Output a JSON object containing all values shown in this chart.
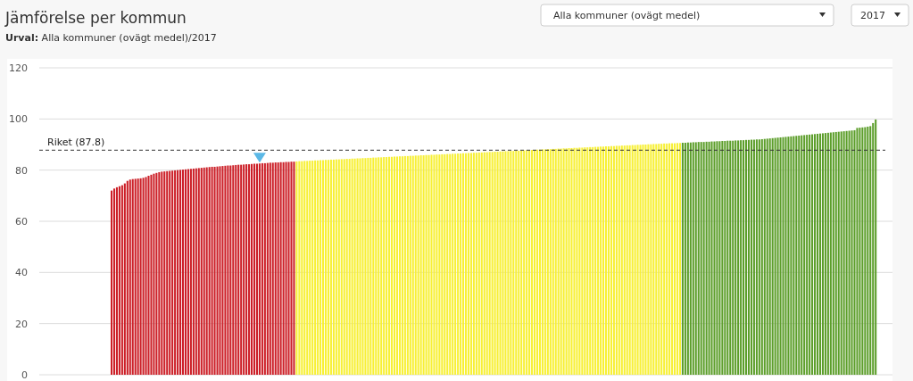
{
  "chart_data": {
    "type": "bar",
    "title": "Jämförelse per kommun",
    "subtitle": "Urval: Alla kommuner (ovägt medel)/2017",
    "annotations": [
      "Alla kommuner (ovägt medel)",
      "2017"
    ],
    "categories": [
      null,
      null,
      null,
      null,
      null,
      null,
      null,
      null,
      null,
      null,
      null,
      null,
      null,
      null,
      null,
      null,
      null,
      null,
      null,
      null,
      null,
      null,
      null,
      null,
      null,
      null,
      null,
      null,
      null,
      null,
      null,
      null,
      null,
      null,
      null,
      null,
      null,
      null,
      null,
      null,
      null,
      null,
      null,
      null,
      null,
      null,
      null,
      null,
      null,
      null,
      null,
      null,
      null,
      null,
      null,
      null,
      null,
      null,
      null,
      null,
      null,
      null,
      null,
      null,
      null,
      null,
      null,
      null,
      null,
      null,
      null,
      null,
      null,
      null,
      null,
      null,
      null,
      null,
      null,
      null,
      null,
      null,
      null,
      null,
      null,
      null,
      null,
      null,
      null,
      null,
      null,
      null,
      null,
      null,
      null,
      null,
      null,
      null,
      null,
      null,
      null,
      null,
      null,
      null,
      null,
      null,
      null,
      null,
      null,
      null,
      null,
      null,
      null,
      null,
      null,
      null,
      null,
      null,
      null,
      null,
      null,
      null,
      null,
      null,
      null,
      null,
      null,
      null,
      null,
      null,
      null,
      null,
      null,
      null,
      null,
      null,
      null,
      null,
      null,
      null,
      null,
      null,
      null,
      null,
      null,
      null,
      null,
      null,
      null,
      null,
      null,
      null,
      null,
      null,
      null,
      null,
      null,
      null,
      null,
      null,
      null,
      null,
      null,
      null,
      null,
      null,
      null,
      null,
      null,
      null,
      null,
      null,
      null,
      null,
      null,
      null,
      null,
      null,
      null,
      null,
      null,
      null,
      null,
      null,
      null,
      null,
      null,
      null,
      null,
      null,
      null,
      null,
      null,
      null,
      null,
      null,
      null,
      null,
      null,
      null,
      null,
      null,
      null,
      null,
      null,
      null,
      null,
      null,
      null,
      null,
      null,
      null,
      null,
      null,
      null,
      null,
      null,
      null,
      null,
      null,
      null,
      null,
      null,
      null,
      null,
      null,
      null,
      null,
      null,
      null,
      null,
      null,
      null,
      null,
      null,
      null,
      null,
      null,
      null,
      null,
      null,
      null,
      null,
      null,
      null,
      null,
      null,
      null,
      null,
      null,
      null,
      null,
      null,
      null,
      null,
      null,
      null,
      null,
      null,
      null,
      null,
      null,
      null,
      null,
      null,
      null,
      null,
      null,
      null,
      null,
      null,
      null,
      null,
      null,
      null,
      null,
      null,
      null,
      null,
      null,
      null,
      null,
      null,
      null,
      null,
      null,
      null,
      null,
      null,
      null,
      null,
      null,
      null,
      null,
      null,
      null,
      null,
      null,
      null,
      null,
      null,
      null,
      null,
      null,
      null,
      null,
      null,
      null,
      null,
      null,
      null,
      null,
      null,
      null,
      null,
      null,
      null,
      null,
      null,
      null,
      null,
      null,
      null
    ],
    "values": [
      null,
      null,
      null,
      null,
      null,
      null,
      null,
      null,
      null,
      null,
      null,
      null,
      null,
      null,
      null,
      null,
      null,
      null,
      null,
      null,
      null,
      null,
      null,
      null,
      null,
      null,
      null,
      72.0,
      72.8,
      73.3,
      73.7,
      74.1,
      74.8,
      75.8,
      76.3,
      76.5,
      76.6,
      76.7,
      76.8,
      77.0,
      77.3,
      77.8,
      78.2,
      78.6,
      78.9,
      79.2,
      79.4,
      79.5,
      79.6,
      79.7,
      79.8,
      79.9,
      80.0,
      80.1,
      80.2,
      80.3,
      80.4,
      80.5,
      80.6,
      80.7,
      80.8,
      80.9,
      81.0,
      81.1,
      81.2,
      81.3,
      81.3,
      81.4,
      81.5,
      81.6,
      81.7,
      81.8,
      81.8,
      81.9,
      82.0,
      82.1,
      82.1,
      82.2,
      82.3,
      82.3,
      82.4,
      82.5,
      82.5,
      82.6,
      82.7,
      82.7,
      82.8,
      82.9,
      82.9,
      83.0,
      83.0,
      83.1,
      83.1,
      83.2,
      83.2,
      83.3,
      83.3,
      83.4,
      83.5,
      83.5,
      83.6,
      83.6,
      83.7,
      83.7,
      83.8,
      83.8,
      83.9,
      83.9,
      84.0,
      84.0,
      84.1,
      84.1,
      84.2,
      84.2,
      84.3,
      84.3,
      84.4,
      84.4,
      84.5,
      84.5,
      84.6,
      84.6,
      84.7,
      84.7,
      84.8,
      84.8,
      84.9,
      84.9,
      85.0,
      85.0,
      85.1,
      85.1,
      85.2,
      85.2,
      85.3,
      85.3,
      85.4,
      85.4,
      85.5,
      85.5,
      85.6,
      85.6,
      85.7,
      85.7,
      85.8,
      85.8,
      85.9,
      85.9,
      86.0,
      86.0,
      86.1,
      86.1,
      86.2,
      86.2,
      86.3,
      86.3,
      86.4,
      86.4,
      86.5,
      86.5,
      86.6,
      86.6,
      86.7,
      86.7,
      86.8,
      86.8,
      86.9,
      86.9,
      87.0,
      87.0,
      87.1,
      87.1,
      87.2,
      87.2,
      87.3,
      87.3,
      87.4,
      87.4,
      87.5,
      87.5,
      87.6,
      87.6,
      87.7,
      87.7,
      87.8,
      87.8,
      87.9,
      87.9,
      88.0,
      88.0,
      88.1,
      88.1,
      88.2,
      88.2,
      88.3,
      88.3,
      88.4,
      88.4,
      88.5,
      88.5,
      88.6,
      88.6,
      88.7,
      88.7,
      88.8,
      88.8,
      88.9,
      88.9,
      89.0,
      89.0,
      89.1,
      89.1,
      89.2,
      89.2,
      89.3,
      89.3,
      89.4,
      89.4,
      89.5,
      89.5,
      89.6,
      89.6,
      89.7,
      89.7,
      89.8,
      89.8,
      89.9,
      89.9,
      90.0,
      90.0,
      90.1,
      90.1,
      90.2,
      90.2,
      90.3,
      90.3,
      90.4,
      90.4,
      90.5,
      90.5,
      90.5,
      90.6,
      90.6,
      90.7,
      90.7,
      90.8,
      90.8,
      90.9,
      90.9,
      91.0,
      91.0,
      91.0,
      91.1,
      91.1,
      91.2,
      91.2,
      91.3,
      91.3,
      91.4,
      91.4,
      91.5,
      91.5,
      91.5,
      91.6,
      91.6,
      91.7,
      91.7,
      91.8,
      91.8,
      91.9,
      91.9,
      92.0,
      92.0,
      92.1,
      92.2,
      92.3,
      92.4,
      92.5,
      92.6,
      92.7,
      92.8,
      92.9,
      93.0,
      93.1,
      93.2,
      93.3,
      93.4,
      93.5,
      93.6,
      93.7,
      93.8,
      93.9,
      94.0,
      94.1,
      94.2,
      94.3,
      94.4,
      94.5,
      94.6,
      94.7,
      94.8,
      94.9,
      95.0,
      95.1,
      95.2,
      95.3,
      95.4,
      95.5,
      95.6,
      96.5,
      96.6,
      96.7,
      96.8,
      97.0,
      97.2,
      98.4,
      99.8,
      null,
      null,
      null,
      null,
      null,
      null
    ],
    "colors": [
      null,
      null,
      null,
      null,
      null,
      null,
      null,
      null,
      null,
      null,
      null,
      null,
      null,
      null,
      null,
      null,
      null,
      null,
      null,
      null,
      null,
      null,
      null,
      null,
      null,
      null,
      null,
      "#cc1f27",
      "#cc1f27",
      "#cc1f27",
      "#cc1f27",
      "#cc1f27",
      "#cc1f27",
      "#cc1f27",
      "#cc1f27",
      "#cc1f27",
      "#cc1f27",
      "#cc1f27",
      "#cc1f27",
      "#cc1f27",
      "#cc1f27",
      "#cc1f27",
      "#cc1f27",
      "#cc1f27",
      "#cc1f27",
      "#cc1f27",
      "#cc1f27",
      "#cc1f27",
      "#cc1f27",
      "#cc1f27",
      "#cc1f27",
      "#cc1f27",
      "#cc1f27",
      "#cc1f27",
      "#cc1f27",
      "#cc1f27",
      "#cc1f27",
      "#cc1f27",
      "#cc1f27",
      "#cc1f27",
      "#cc1f27",
      "#cc1f27",
      "#cc1f27",
      "#cc1f27",
      "#cc1f27",
      "#cc1f27",
      "#cc1f27",
      "#cc1f27",
      "#cc1f27",
      "#cc1f27",
      "#cc1f27",
      "#cc1f27",
      "#cc1f27",
      "#cc1f27",
      "#cc1f27",
      "#cc1f27",
      "#cc1f27",
      "#cc1f27",
      "#cc1f27",
      "#cc1f27",
      "#cc1f27",
      "#cc1f27",
      "#cc1f27",
      "#cc1f27",
      "#cc1f27",
      "#cc1f27",
      "#cc1f27",
      "#cc1f27",
      "#cc1f27",
      "#cc1f27",
      "#cc1f27",
      "#cc1f27",
      "#cc1f27",
      "#cc1f27",
      "#cc1f27",
      "#cc1f27",
      "#cc1f27",
      "#f7f035",
      "#f7f035",
      "#f7f035",
      "#f7f035",
      "#f7f035",
      "#f7f035",
      "#f7f035",
      "#f7f035",
      "#f7f035",
      "#f7f035",
      "#f7f035",
      "#f7f035",
      "#f7f035",
      "#f7f035",
      "#f7f035",
      "#f7f035",
      "#f7f035",
      "#f7f035",
      "#f7f035",
      "#f7f035",
      "#f7f035",
      "#f7f035",
      "#f7f035",
      "#f7f035",
      "#f7f035",
      "#f7f035",
      "#f7f035",
      "#f7f035",
      "#f7f035",
      "#f7f035",
      "#f7f035",
      "#f7f035",
      "#f7f035",
      "#f7f035",
      "#f7f035",
      "#f7f035",
      "#f7f035",
      "#f7f035",
      "#f7f035",
      "#f7f035",
      "#f7f035",
      "#f7f035",
      "#f7f035",
      "#f7f035",
      "#f7f035",
      "#f7f035",
      "#f7f035",
      "#f7f035",
      "#f7f035",
      "#f7f035",
      "#f7f035",
      "#f7f035",
      "#f7f035",
      "#f7f035",
      "#f7f035",
      "#f7f035",
      "#f7f035",
      "#f7f035",
      "#f7f035",
      "#f7f035",
      "#f7f035",
      "#f7f035",
      "#f7f035",
      "#f7f035",
      "#f7f035",
      "#f7f035",
      "#f7f035",
      "#f7f035",
      "#f7f035",
      "#f7f035",
      "#f7f035",
      "#f7f035",
      "#f7f035",
      "#f7f035",
      "#f7f035",
      "#f7f035",
      "#f7f035",
      "#f7f035",
      "#f7f035",
      "#f7f035",
      "#f7f035",
      "#f7f035",
      "#f7f035",
      "#f7f035",
      "#f7f035",
      "#f7f035",
      "#f7f035",
      "#f7f035",
      "#f7f035",
      "#f7f035",
      "#f7f035",
      "#f7f035",
      "#f7f035",
      "#f7f035",
      "#f7f035",
      "#f7f035",
      "#f7f035",
      "#f7f035",
      "#f7f035",
      "#f7f035",
      "#f7f035",
      "#f7f035",
      "#f7f035",
      "#f7f035",
      "#f7f035",
      "#f7f035",
      "#f7f035",
      "#f7f035",
      "#f7f035",
      "#f7f035",
      "#f7f035",
      "#f7f035",
      "#f7f035",
      "#f7f035",
      "#f7f035",
      "#f7f035",
      "#f7f035",
      "#f7f035",
      "#f7f035",
      "#f7f035",
      "#f7f035",
      "#f7f035",
      "#f7f035",
      "#f7f035",
      "#f7f035",
      "#f7f035",
      "#f7f035",
      "#f7f035",
      "#f7f035",
      "#f7f035",
      "#f7f035",
      "#f7f035",
      "#f7f035",
      "#f7f035",
      "#f7f035",
      "#f7f035",
      "#f7f035",
      "#f7f035",
      "#f7f035",
      "#f7f035",
      "#f7f035",
      "#f7f035",
      "#f7f035",
      "#f7f035",
      "#f7f035",
      "#f7f035",
      "#5c9e2a",
      "#5c9e2a",
      "#5c9e2a",
      "#5c9e2a",
      "#5c9e2a",
      "#5c9e2a",
      "#5c9e2a",
      "#5c9e2a",
      "#5c9e2a",
      "#5c9e2a",
      "#5c9e2a",
      "#5c9e2a",
      "#5c9e2a",
      "#5c9e2a",
      "#5c9e2a",
      "#5c9e2a",
      "#5c9e2a",
      "#5c9e2a",
      "#5c9e2a",
      "#5c9e2a",
      "#5c9e2a",
      "#5c9e2a",
      "#5c9e2a",
      "#5c9e2a",
      "#5c9e2a",
      "#5c9e2a",
      "#5c9e2a",
      "#5c9e2a",
      "#5c9e2a",
      "#5c9e2a",
      "#5c9e2a",
      "#5c9e2a",
      "#5c9e2a",
      "#5c9e2a",
      "#5c9e2a",
      "#5c9e2a",
      "#5c9e2a",
      "#5c9e2a",
      "#5c9e2a",
      "#5c9e2a",
      "#5c9e2a",
      "#5c9e2a",
      "#5c9e2a",
      "#5c9e2a",
      "#5c9e2a",
      "#5c9e2a",
      "#5c9e2a",
      "#5c9e2a",
      "#5c9e2a",
      "#5c9e2a",
      "#5c9e2a",
      "#5c9e2a",
      "#5c9e2a",
      "#5c9e2a",
      "#5c9e2a",
      "#5c9e2a",
      "#5c9e2a",
      "#5c9e2a",
      "#5c9e2a",
      "#5c9e2a",
      "#5c9e2a",
      "#5c9e2a",
      "#5c9e2a",
      "#5c9e2a",
      "#5c9e2a",
      "#5c9e2a",
      "#5c9e2a",
      "#5c9e2a",
      "#5c9e2a",
      "#5c9e2a",
      "#5c9e2a",
      "#5c9e2a",
      "#5c9e2a",
      "#5c9e2a",
      null,
      null,
      null,
      null,
      null,
      null
    ],
    "ylim": [
      0,
      120
    ],
    "yticks": [
      0,
      20,
      40,
      60,
      80,
      100,
      120
    ],
    "grid": "y",
    "ref_lines": [
      {
        "axis": "y",
        "value": 87.8,
        "label": "Riket (87.8)",
        "line_style": "dashed",
        "color": "#333333"
      }
    ]
  }
}
